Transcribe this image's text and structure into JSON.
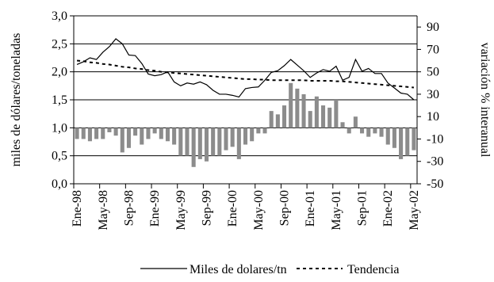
{
  "chart_data": {
    "type": "bar+line",
    "y_left": {
      "label": "miles de dólares/toneladas",
      "ylim": [
        0,
        3
      ],
      "ticks": [
        "0,0",
        "0,5",
        "1,0",
        "1,5",
        "2,0",
        "2,5",
        "3,0"
      ]
    },
    "y_right": {
      "label": "variación % interanual",
      "ylim": [
        -50,
        100
      ],
      "ticks": [
        "-50",
        "-30",
        "-10",
        "10",
        "30",
        "50",
        "70",
        "90"
      ]
    },
    "x_tick_labels": [
      "Ene-98",
      "May-98",
      "Sep-98",
      "Ene-99",
      "May-99",
      "Sep-99",
      "Ene-00",
      "May-00",
      "Sep-00",
      "Ene-01",
      "May-01",
      "Sep-01",
      "Ene-02",
      "May-02"
    ],
    "x_start": "1998-01",
    "months": 53,
    "grid": "horizontal",
    "series": [
      {
        "name": "Miles de dolares/tn",
        "axis": "left",
        "style": "solid",
        "color": "#000000",
        "values": [
          2.13,
          2.18,
          2.25,
          2.22,
          2.35,
          2.45,
          2.59,
          2.5,
          2.3,
          2.29,
          2.15,
          1.96,
          1.93,
          1.95,
          2.0,
          1.82,
          1.75,
          1.8,
          1.78,
          1.82,
          1.77,
          1.67,
          1.6,
          1.6,
          1.58,
          1.55,
          1.7,
          1.72,
          1.73,
          1.85,
          1.99,
          2.02,
          2.11,
          2.22,
          2.12,
          2.02,
          1.9,
          1.98,
          2.04,
          2.01,
          2.1,
          1.85,
          1.9,
          2.22,
          2.01,
          2.06,
          1.97,
          1.97,
          1.8,
          1.71,
          1.62,
          1.6,
          1.5
        ]
      },
      {
        "name": "Tendencia",
        "axis": "left",
        "style": "dashed",
        "color": "#000000",
        "values": [
          2.2,
          2.19,
          2.17,
          2.16,
          2.14,
          2.13,
          2.11,
          2.09,
          2.08,
          2.06,
          2.05,
          2.03,
          2.02,
          2.0,
          1.99,
          1.98,
          1.97,
          1.96,
          1.95,
          1.94,
          1.93,
          1.92,
          1.91,
          1.9,
          1.89,
          1.88,
          1.87,
          1.87,
          1.86,
          1.86,
          1.85,
          1.85,
          1.85,
          1.85,
          1.85,
          1.85,
          1.84,
          1.84,
          1.84,
          1.84,
          1.83,
          1.83,
          1.82,
          1.81,
          1.8,
          1.79,
          1.78,
          1.77,
          1.76,
          1.75,
          1.74,
          1.73,
          1.72
        ]
      },
      {
        "name": "variación % interanual",
        "axis": "right",
        "style": "bar",
        "color": "#8c8c8c",
        "values": [
          -10,
          -10,
          -12,
          -10,
          -10,
          -4,
          -7,
          -22,
          -18,
          -7,
          -15,
          -10,
          -5,
          -10,
          -12,
          -15,
          -25,
          -25,
          -35,
          -28,
          -30,
          -25,
          -25,
          -20,
          -17,
          -28,
          -15,
          -12,
          -5,
          -5,
          15,
          12,
          20,
          40,
          35,
          30,
          15,
          28,
          20,
          18,
          25,
          5,
          -5,
          10,
          -5,
          -8,
          -5,
          -8,
          -15,
          -18,
          -28,
          -25,
          -20
        ]
      }
    ]
  }
}
